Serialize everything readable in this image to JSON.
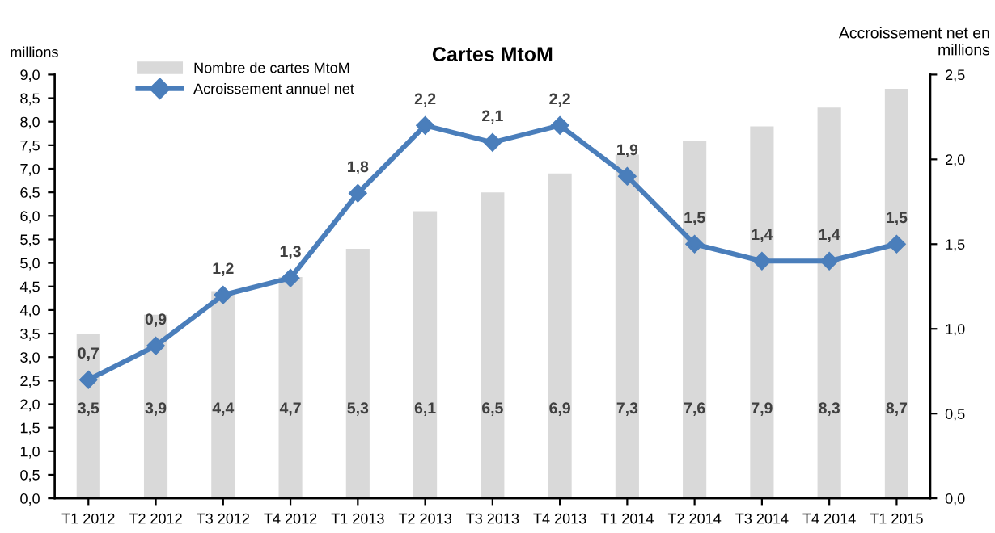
{
  "chart_data": {
    "type": "bar",
    "title": "Cartes MtoM",
    "ylabel": "millions",
    "y2label": "Accroissement net en\nmillions",
    "categories": [
      "T1 2012",
      "T2 2012",
      "T3 2012",
      "T4 2012",
      "T1 2013",
      "T2 2013",
      "T3 2013",
      "T4 2013",
      "T1 2014",
      "T2 2014",
      "T3 2014",
      "T4 2014",
      "T1 2015"
    ],
    "series": [
      {
        "name": "Nombre de cartes MtoM",
        "color": "#d9d9d9",
        "values": [
          3.5,
          3.9,
          4.4,
          4.7,
          5.3,
          6.1,
          6.5,
          6.9,
          7.3,
          7.6,
          7.9,
          8.3,
          8.7
        ],
        "value_labels": [
          "3,5",
          "3,9",
          "4,4",
          "4,7",
          "5,3",
          "6,1",
          "6,5",
          "6,9",
          "7,3",
          "7,6",
          "7,9",
          "8,3",
          "8,7"
        ]
      },
      {
        "name": "Acroissement annuel net",
        "type": "line",
        "axis": "y2",
        "color": "#4a7ebb",
        "marker": "diamond",
        "values": [
          0.7,
          0.9,
          1.2,
          1.3,
          1.8,
          2.2,
          2.1,
          2.2,
          1.9,
          1.5,
          1.4,
          1.4,
          1.5
        ],
        "value_labels": [
          "0,7",
          "0,9",
          "1,2",
          "1,3",
          "1,8",
          "2,2",
          "2,1",
          "2,2",
          "1,9",
          "1,5",
          "1,4",
          "1,4",
          "1,5"
        ]
      }
    ],
    "ylim": [
      0,
      9
    ],
    "yticks": [
      {
        "value": 0,
        "label": "0,0"
      },
      {
        "value": 0.5,
        "label": "0,5"
      },
      {
        "value": 1,
        "label": "1,0"
      },
      {
        "value": 1.5,
        "label": "1,5"
      },
      {
        "value": 2,
        "label": "2,0"
      },
      {
        "value": 2.5,
        "label": "2,5"
      },
      {
        "value": 3,
        "label": "3,0"
      },
      {
        "value": 3.5,
        "label": "3,5"
      },
      {
        "value": 4,
        "label": "4,0"
      },
      {
        "value": 4.5,
        "label": "4,5"
      },
      {
        "value": 5,
        "label": "5,0"
      },
      {
        "value": 5.5,
        "label": "5,5"
      },
      {
        "value": 6,
        "label": "6,0"
      },
      {
        "value": 6.5,
        "label": "6,5"
      },
      {
        "value": 7,
        "label": "7,0"
      },
      {
        "value": 7.5,
        "label": "7,5"
      },
      {
        "value": 8,
        "label": "8,0"
      },
      {
        "value": 8.5,
        "label": "8,5"
      },
      {
        "value": 9,
        "label": "9,0"
      }
    ],
    "y2lim": [
      0,
      2.5
    ],
    "y2ticks": [
      {
        "value": 0,
        "label": "0,0"
      },
      {
        "value": 0.5,
        "label": "0,5"
      },
      {
        "value": 1,
        "label": "1,0"
      },
      {
        "value": 1.5,
        "label": "1,5"
      },
      {
        "value": 2,
        "label": "2,0"
      },
      {
        "value": 2.5,
        "label": "2,5"
      }
    ],
    "legend": "top left",
    "grid": false
  }
}
